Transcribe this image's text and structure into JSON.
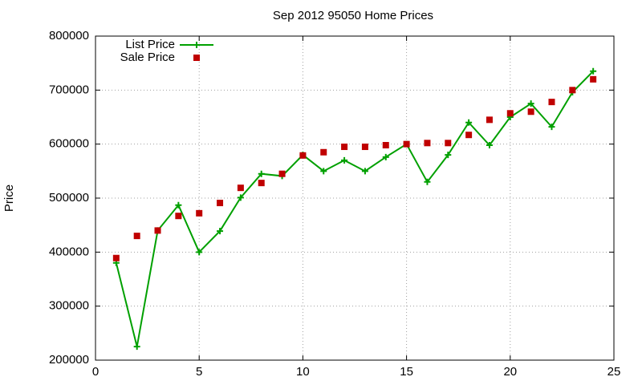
{
  "chart_data": {
    "type": "line",
    "title": "Sep 2012 95050 Home Prices",
    "y_label": "Price",
    "x": [
      1,
      2,
      3,
      4,
      5,
      6,
      7,
      8,
      9,
      10,
      11,
      12,
      13,
      14,
      15,
      16,
      17,
      18,
      19,
      20,
      21,
      22,
      23,
      24
    ],
    "series": [
      {
        "name": "List Price",
        "color": "#00a000",
        "style": "linespoints",
        "values": [
          380000,
          225000,
          440000,
          487000,
          400000,
          439000,
          501000,
          545000,
          541000,
          580000,
          550000,
          570000,
          550000,
          576000,
          600000,
          530000,
          580000,
          640000,
          598000,
          650000,
          675000,
          632000,
          696000,
          735000
        ]
      },
      {
        "name": "Sale Price",
        "color": "#c00000",
        "style": "points",
        "values": [
          389000,
          430000,
          440000,
          467000,
          472000,
          491000,
          519000,
          528000,
          545000,
          579000,
          585000,
          595000,
          595000,
          598000,
          600000,
          602000,
          602000,
          617000,
          645000,
          657000,
          660000,
          678000,
          700000,
          720000
        ]
      }
    ],
    "xlim": [
      0,
      25
    ],
    "xticks": [
      0,
      5,
      10,
      15,
      20,
      25
    ],
    "ylim": [
      200000,
      800000
    ],
    "yticks": [
      200000,
      300000,
      400000,
      500000,
      600000,
      700000,
      800000
    ],
    "grid": true,
    "legend": "top-left"
  }
}
